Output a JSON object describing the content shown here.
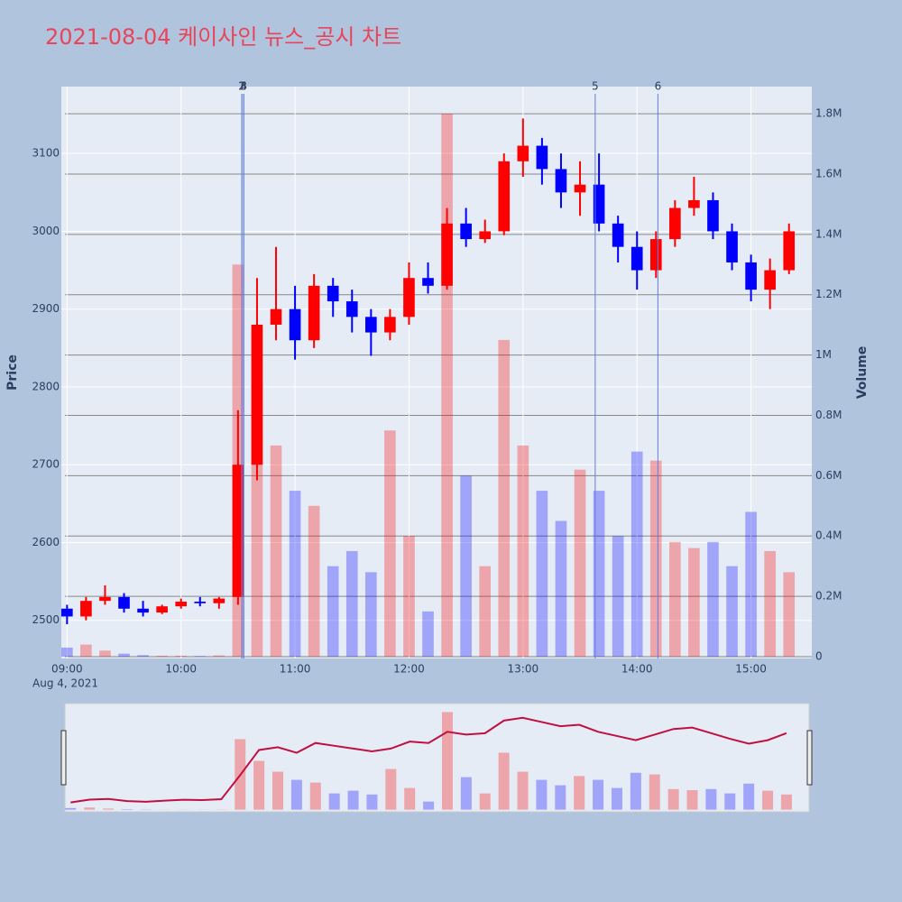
{
  "chart_data": {
    "type": "candlestick",
    "title": "2021-08-04 케이사인 뉴스_공시 차트",
    "x_date_label": "Aug 4, 2021",
    "yaxis_title": "Price",
    "y2axis_title": "Volume",
    "increasing_color": "#ff0000",
    "decreasing_color": "#0000ff",
    "x": [
      "09:00",
      "09:10",
      "09:20",
      "09:30",
      "09:40",
      "09:50",
      "10:00",
      "10:10",
      "10:20",
      "10:30",
      "10:40",
      "10:50",
      "11:00",
      "11:10",
      "11:20",
      "11:30",
      "11:40",
      "11:50",
      "12:00",
      "12:10",
      "12:20",
      "12:30",
      "12:40",
      "12:50",
      "13:00",
      "13:10",
      "13:20",
      "13:30",
      "13:40",
      "13:50",
      "14:00",
      "14:10",
      "14:20",
      "14:30",
      "14:40",
      "14:50",
      "15:00",
      "15:10",
      "15:20"
    ],
    "open": [
      2515,
      2505,
      2525,
      2530,
      2515,
      2510,
      2518,
      2524,
      2522,
      2530,
      2700,
      2880,
      2900,
      2860,
      2930,
      2910,
      2890,
      2870,
      2890,
      2940,
      2930,
      3010,
      2990,
      3000,
      3090,
      3110,
      3080,
      3050,
      3060,
      3010,
      2980,
      2950,
      2990,
      3030,
      3040,
      3000,
      2960,
      2925,
      2950
    ],
    "high": [
      2520,
      2530,
      2545,
      2535,
      2525,
      2520,
      2528,
      2530,
      2530,
      2770,
      2940,
      2980,
      2930,
      2945,
      2940,
      2925,
      2900,
      2900,
      2960,
      2960,
      3030,
      3030,
      3015,
      3100,
      3145,
      3120,
      3100,
      3090,
      3100,
      3020,
      3000,
      3000,
      3040,
      3070,
      3050,
      3010,
      2970,
      2965,
      3010
    ],
    "low": [
      2495,
      2500,
      2520,
      2510,
      2505,
      2508,
      2515,
      2518,
      2515,
      2520,
      2680,
      2860,
      2835,
      2850,
      2890,
      2870,
      2840,
      2860,
      2880,
      2920,
      2925,
      2980,
      2985,
      2995,
      3070,
      3060,
      3030,
      3020,
      3000,
      2960,
      2925,
      2940,
      2980,
      3020,
      2990,
      2950,
      2910,
      2900,
      2945
    ],
    "close": [
      2505,
      2525,
      2530,
      2515,
      2510,
      2518,
      2524,
      2522,
      2528,
      2700,
      2880,
      2900,
      2860,
      2930,
      2910,
      2890,
      2870,
      2890,
      2940,
      2930,
      3010,
      2990,
      3000,
      3090,
      3110,
      3080,
      3050,
      3060,
      3010,
      2980,
      2950,
      2990,
      3030,
      3040,
      3000,
      2960,
      2925,
      2950,
      3000
    ],
    "volume": [
      30000,
      40000,
      20000,
      10000,
      5000,
      3000,
      3000,
      2000,
      4000,
      1300000,
      900000,
      700000,
      550000,
      500000,
      300000,
      350000,
      280000,
      750000,
      400000,
      150000,
      1800000,
      600000,
      300000,
      1050000,
      700000,
      550000,
      450000,
      620000,
      550000,
      400000,
      680000,
      650000,
      380000,
      360000,
      380000,
      300000,
      480000,
      350000,
      280000
    ],
    "xlim": [
      "08:57",
      "15:32"
    ],
    "xticks": [
      "09:00",
      "10:00",
      "11:00",
      "12:00",
      "13:00",
      "14:00",
      "15:00"
    ],
    "ylim": [
      2451,
      3186
    ],
    "yticks": [
      2500,
      2600,
      2700,
      2800,
      2900,
      3000,
      3100
    ],
    "y2lim": [
      -6000,
      1890000
    ],
    "y2ticks": [
      0,
      {
        "value": 200000,
        "label": "0.2M"
      },
      {
        "value": 400000,
        "label": "0.4M"
      },
      {
        "value": 600000,
        "label": "0.6M"
      },
      {
        "value": 800000,
        "label": "0.8M"
      },
      {
        "value": 1000000,
        "label": "1M"
      },
      {
        "value": 1200000,
        "label": "1.2M"
      },
      {
        "value": 1400000,
        "label": "1.4M"
      },
      {
        "value": 1600000,
        "label": "1.6M"
      },
      {
        "value": 1800000,
        "label": "1.8M"
      }
    ],
    "events": [
      {
        "x": "10:32",
        "label": "1"
      },
      {
        "x": "10:32",
        "label": "2"
      },
      {
        "x": "10:33",
        "label": "3"
      },
      {
        "x": "10:33",
        "label": "4"
      },
      {
        "x": "13:38",
        "label": "5"
      },
      {
        "x": "14:11",
        "label": "6"
      }
    ]
  }
}
